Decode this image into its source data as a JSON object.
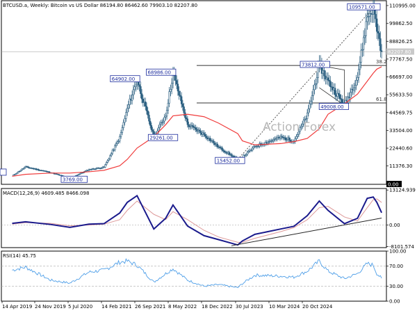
{
  "chart_data": [
    {
      "panel": "price",
      "type": "candlestick",
      "title": "BTCUSD.a, Weekly:  Bitcoin vs US Dollar  86194.80 86462.60 79903.10 82207.80",
      "watermark": "Action Forex",
      "y_ticks": [
        "110995.00",
        "99862.50",
        "88826.25",
        "77767.50",
        "66697.00",
        "55633.50",
        "44569.75",
        "33504.00",
        "22440.60",
        "11376.30",
        "0.00"
      ],
      "ylim": [
        0,
        114000
      ],
      "price_labels": [
        {
          "label": "82207.80",
          "value": 82207.8
        },
        {
          "label": "0.00",
          "value": 0
        }
      ],
      "fib_levels": [
        {
          "label": "38.2",
          "value": 73812
        },
        {
          "label": "61.8",
          "value": 50500
        }
      ],
      "annotations": [
        {
          "label": "109571.00",
          "value": 109571,
          "date": "2025-01-20"
        },
        {
          "label": "73812.00",
          "value": 73812,
          "date": "2024-03-11"
        },
        {
          "label": "64902.00",
          "value": 64902,
          "date": "2021-04-12"
        },
        {
          "label": "68986.00",
          "value": 68986,
          "date": "2021-11-08"
        },
        {
          "label": "29261.00",
          "value": 29261,
          "date": "2021-07-19"
        },
        {
          "label": "49008.00",
          "value": 49008,
          "date": "2024-08-05"
        },
        {
          "label": "15452.00",
          "value": 15452,
          "date": "2022-11-21"
        },
        {
          "label": "3769.00",
          "value": 3769,
          "date": "2020-03-16"
        }
      ],
      "series": [
        {
          "name": "",
          "color": "#2b5f80"
        },
        {
          "name": "",
          "color": "#f03c3c"
        }
      ],
      "x": [
        "2019-04-14",
        "2019-07-01",
        "2019-11-24",
        "2020-03-16",
        "2020-07-05",
        "2020-10-01",
        "2021-01-01",
        "2021-02-14",
        "2021-04-12",
        "2021-07-19",
        "2021-09-26",
        "2021-11-08",
        "2022-02-01",
        "2022-05-08",
        "2022-08-01",
        "2022-11-21",
        "2022-12-18",
        "2023-03-01",
        "2023-07-30",
        "2023-10-15",
        "2024-01-01",
        "2024-03-11",
        "2024-05-01",
        "2024-08-05",
        "2024-10-20",
        "2024-12-16",
        "2025-01-20",
        "2025-02-10",
        "2025-03-10"
      ],
      "price": [
        5200,
        10800,
        7300,
        3769,
        9100,
        10600,
        29000,
        47000,
        64902,
        29261,
        43000,
        68986,
        37000,
        31000,
        23000,
        15452,
        16800,
        23500,
        29200,
        27000,
        43000,
        73812,
        64000,
        49008,
        67000,
        104000,
        109571,
        97000,
        82207.8
      ],
      "ma": [
        5000,
        6200,
        7000,
        7000,
        7800,
        8700,
        11500,
        15500,
        22500,
        29500,
        37000,
        42500,
        43500,
        42000,
        38000,
        31500,
        27000,
        24500,
        25300,
        26500,
        28500,
        34500,
        43500,
        50000,
        56000,
        64000,
        69000,
        71500,
        73000
      ],
      "x_ticks": [
        "14 Apr 2019",
        "24 Nov 2019",
        "5 Jul 2020",
        "14 Feb 2021",
        "26 Sep 2021",
        "8 May 2022",
        "18 Dec 2022",
        "30 Jul 2023",
        "10 Mar 2024",
        "20 Oct 2024"
      ]
    },
    {
      "panel": "macd",
      "type": "line",
      "title": "MACD(12,26,9) 4609.485 8466.098",
      "y_ticks": [
        "13124.939",
        "0.00",
        "-8101.574"
      ],
      "ylim": [
        -8500,
        13700
      ],
      "series": [
        {
          "name": "",
          "color": "#1a1a8c"
        },
        {
          "name": "",
          "color": "#dd9999"
        }
      ],
      "x": [
        "2019-04-14",
        "2019-07-01",
        "2019-11-24",
        "2020-03-16",
        "2020-07-05",
        "2020-10-01",
        "2021-01-01",
        "2021-02-14",
        "2021-04-12",
        "2021-07-19",
        "2021-09-26",
        "2021-11-08",
        "2022-02-01",
        "2022-05-08",
        "2022-08-01",
        "2022-11-21",
        "2022-12-18",
        "2023-03-01",
        "2023-07-30",
        "2023-10-15",
        "2024-01-01",
        "2024-03-11",
        "2024-05-01",
        "2024-08-05",
        "2024-10-20",
        "2024-12-16",
        "2025-01-20",
        "2025-02-10",
        "2025-03-10"
      ],
      "macd": [
        600,
        1200,
        200,
        -900,
        300,
        500,
        4500,
        8500,
        11000,
        -1500,
        2500,
        7500,
        -400,
        -4000,
        -5500,
        -7500,
        -6000,
        -3500,
        -1500,
        -500,
        3500,
        9000,
        5500,
        500,
        2500,
        10000,
        10500,
        8500,
        4609.485
      ],
      "signal": [
        300,
        900,
        600,
        -300,
        0,
        300,
        2000,
        5500,
        9000,
        4000,
        2000,
        5000,
        2000,
        -2000,
        -4500,
        -6500,
        -6500,
        -5000,
        -2500,
        -1000,
        2000,
        6500,
        7000,
        3000,
        1500,
        6500,
        9500,
        9800,
        8466.098
      ],
      "trendline": [
        {
          "x": "2022-10-15",
          "y": -7800
        },
        {
          "x": "2025-03-10",
          "y": 2600
        }
      ]
    },
    {
      "panel": "rsi",
      "type": "line",
      "title": "RSI(14) 45.75",
      "y_ticks": [
        "100.00",
        "70.00",
        "30.00",
        "0.00"
      ],
      "ylim": [
        0,
        100
      ],
      "levels": [
        70,
        30
      ],
      "series": [
        {
          "name": "",
          "color": "#4f9fe8"
        }
      ],
      "x": [
        "2019-04-14",
        "2019-07-01",
        "2019-11-24",
        "2020-03-16",
        "2020-07-05",
        "2020-10-01",
        "2021-01-01",
        "2021-02-14",
        "2021-04-12",
        "2021-07-19",
        "2021-09-26",
        "2021-11-08",
        "2022-02-01",
        "2022-05-08",
        "2022-08-01",
        "2022-11-21",
        "2022-12-18",
        "2023-03-01",
        "2023-07-30",
        "2023-10-15",
        "2024-01-01",
        "2024-03-11",
        "2024-05-01",
        "2024-08-05",
        "2024-10-20",
        "2024-12-16",
        "2025-01-20",
        "2025-02-10",
        "2025-03-10"
      ],
      "rsi": [
        62,
        68,
        42,
        36,
        58,
        62,
        78,
        80,
        72,
        38,
        55,
        65,
        42,
        30,
        33,
        27,
        35,
        52,
        50,
        48,
        60,
        80,
        60,
        45,
        55,
        75,
        72,
        55,
        45.75
      ]
    }
  ]
}
